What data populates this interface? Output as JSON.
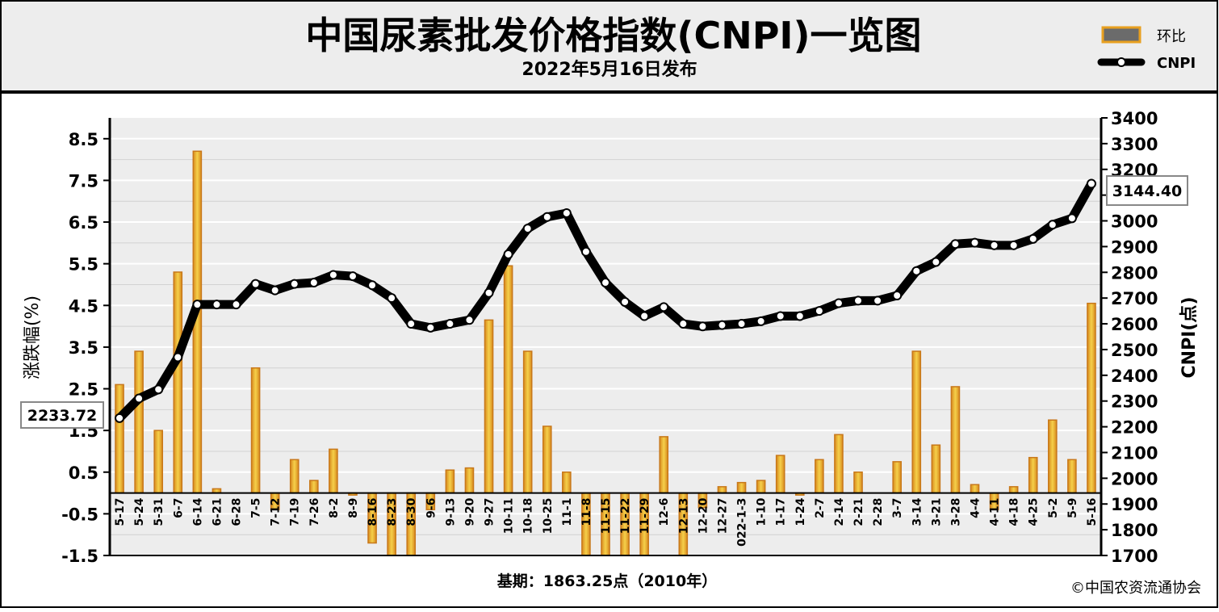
{
  "title": "中国尿素批发价格指数(CNPI)一览图",
  "subtitle": "2022年5月16日发布",
  "legend": {
    "bar_label": "环比",
    "line_label": "CNPI"
  },
  "base_period": "基期：1863.25点（2010年）",
  "copyright": "©中国农资流通协会",
  "colors": {
    "bar_fill": "#f0c238",
    "bar_edge": "#c8781a",
    "line": "#000000",
    "marker": "#ffffff",
    "plot_bg": "#ededed",
    "header_bg": "#ededed"
  },
  "chart_data": {
    "type": "bar+line",
    "categories": [
      "5-17",
      "5-24",
      "5-31",
      "6-7",
      "6-14",
      "6-21",
      "6-28",
      "7-5",
      "7-12",
      "7-19",
      "7-26",
      "8-2",
      "8-9",
      "8-16",
      "8-23",
      "8-30",
      "9-6",
      "9-13",
      "9-20",
      "9-27",
      "10-11",
      "10-18",
      "10-25",
      "11-1",
      "11-8",
      "11-15",
      "11-22",
      "11-29",
      "12-6",
      "12-13",
      "12-20",
      "12-27",
      "022-1-3",
      "1-10",
      "1-17",
      "1-24",
      "2-7",
      "2-14",
      "2-21",
      "2-28",
      "3-7",
      "3-14",
      "3-21",
      "3-28",
      "4-4",
      "4-11",
      "4-18",
      "4-25",
      "5-2",
      "5-9",
      "5-16"
    ],
    "series": [
      {
        "name": "环比",
        "type": "bar",
        "axis": "left",
        "values": [
          2.6,
          3.4,
          1.5,
          5.3,
          8.2,
          0.1,
          0,
          3.0,
          -0.4,
          0.8,
          0.3,
          1.05,
          -0.05,
          -1.2,
          -1.6,
          -1.6,
          -0.4,
          0.55,
          0.6,
          4.15,
          5.45,
          3.4,
          1.6,
          0.5,
          -1.6,
          -1.6,
          -1.6,
          -1.6,
          1.35,
          -1.6,
          -0.35,
          0.15,
          0.25,
          0.3,
          0.9,
          -0.05,
          0.8,
          1.4,
          0.5,
          0,
          0.75,
          3.4,
          1.15,
          2.55,
          0.2,
          -0.4,
          0.15,
          0.85,
          1.75,
          0.8,
          4.55
        ]
      },
      {
        "name": "CNPI",
        "type": "line",
        "axis": "right",
        "values": [
          2233.72,
          2310,
          2345,
          2470,
          2675,
          2675,
          2675,
          2755,
          2730,
          2755,
          2760,
          2790,
          2785,
          2750,
          2700,
          2600,
          2585,
          2600,
          2615,
          2720,
          2870,
          2970,
          3015,
          3030,
          2880,
          2760,
          2685,
          2630,
          2665,
          2600,
          2590,
          2595,
          2600,
          2610,
          2630,
          2630,
          2650,
          2680,
          2690,
          2690,
          2710,
          2805,
          2840,
          2910,
          2915,
          2905,
          2905,
          2930,
          2985,
          3010,
          3144.4
        ]
      }
    ],
    "y_left": {
      "label": "涨跌幅(%)",
      "ticks": [
        "8.5",
        "7.5",
        "6.5",
        "5.5",
        "4.5",
        "3.5",
        "2.5",
        "1.5",
        "0.5",
        "-0.5",
        "-1.5"
      ],
      "range": [
        -1.5,
        9.0
      ]
    },
    "y_right": {
      "label": "CNPI(点)",
      "ticks": [
        "3400",
        "3300",
        "3200",
        "3100",
        "3000",
        "2900",
        "2800",
        "2700",
        "2600",
        "2500",
        "2400",
        "2300",
        "2200",
        "2100",
        "2000",
        "1900",
        "1800",
        "1700"
      ],
      "range": [
        1700,
        3400
      ]
    },
    "annotations": {
      "first_value": "2233.72",
      "last_value": "3144.40"
    },
    "grid": true,
    "legend_position": "top-right"
  }
}
